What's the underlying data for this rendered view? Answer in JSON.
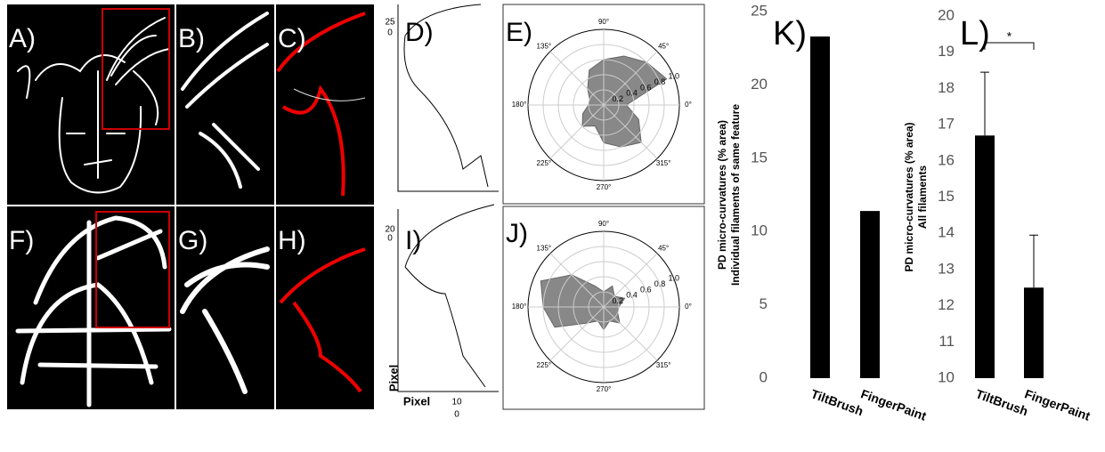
{
  "panel_labels": [
    "A)",
    "B)",
    "C)",
    "D)",
    "E)",
    "F)",
    "G)",
    "H)",
    "I)",
    "J)"
  ],
  "polar_angles": [
    "90°",
    "45°",
    "0°",
    "315°",
    "270°",
    "225°",
    "180°",
    "135°"
  ],
  "polar_radii": [
    "0.2",
    "0.4",
    "0.6",
    "0.8",
    "1.0"
  ],
  "d_ticks": [
    "25",
    "0"
  ],
  "i_ticks": [
    "20",
    "0",
    "10",
    "0"
  ],
  "axis_labels": [
    "Pixel",
    "Pixel"
  ],
  "chart_data": [
    {
      "type": "bar",
      "title": "K)",
      "categories": [
        "TiltBrush",
        "FingerPaint"
      ],
      "values": [
        23.3,
        11.4
      ],
      "color": "#000000",
      "ylabel": [
        "PD micro-curvatures (% area)",
        "Individual filaments of same feature"
      ],
      "ylim": [
        0,
        25
      ],
      "yticks": [
        0,
        5,
        10,
        15,
        20,
        25
      ]
    },
    {
      "type": "bar",
      "title": "L)",
      "categories": [
        "TiltBrush",
        "FingerPaint"
      ],
      "values": [
        16.7,
        12.5
      ],
      "errors": [
        1.75,
        1.45
      ],
      "color": "#000000",
      "ylabel": [
        "PD micro-curvatures (% area)",
        "All filaments"
      ],
      "ylim": [
        10,
        20
      ],
      "yticks": [
        10,
        11,
        12,
        13,
        14,
        15,
        16,
        17,
        18,
        19,
        20
      ],
      "annotation": "*"
    }
  ]
}
